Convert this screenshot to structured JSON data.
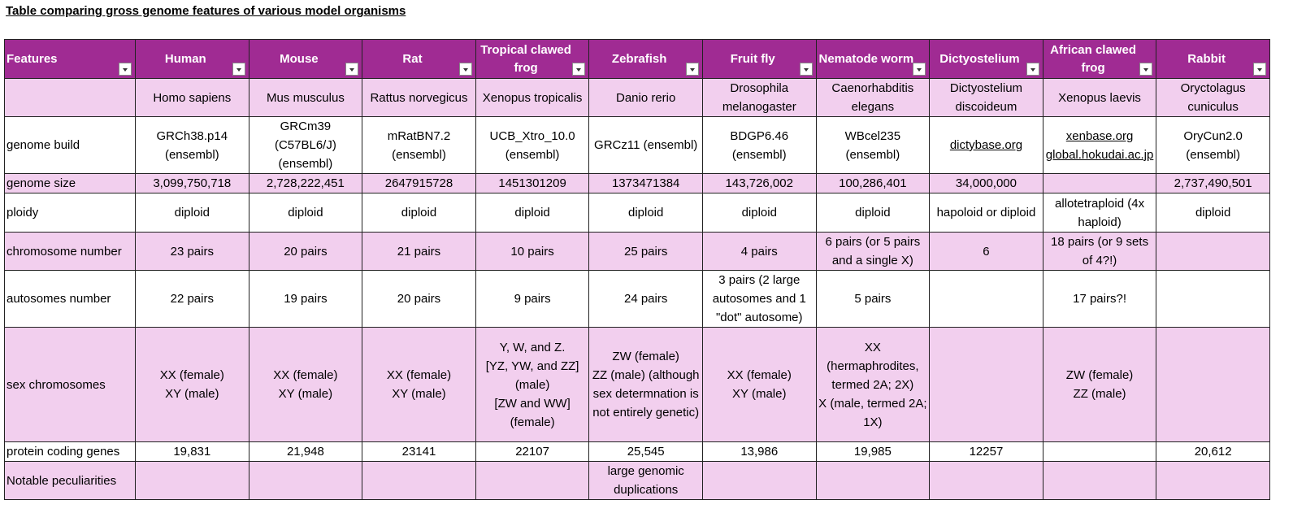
{
  "title": "Table comparing gross genome features of various model organisms",
  "table": {
    "header": [
      "Features",
      "Human",
      "Mouse",
      "Rat",
      "Tropical clawed frog",
      "Zebrafish",
      "Fruit fly",
      "Nematode worm",
      "Dictyostelium",
      "African clawed frog",
      "Rabbit"
    ],
    "rows": [
      [
        null,
        "Homo sapiens",
        "Mus musculus",
        "Rattus norvegicus",
        "Xenopus tropicalis",
        "Danio rerio",
        "Drosophila melanogaster",
        "Caenorhabditis elegans",
        "Dictyostelium discoideum",
        "Xenopus laevis",
        "Oryctolagus cuniculus"
      ],
      [
        "genome build",
        "GRCh38.p14 (ensembl)",
        "GRCm39 (C57BL6/J) (ensembl)",
        "mRatBN7.2 (ensembl)",
        "UCB_Xtro_10.0 (ensembl)",
        "GRCz11 (ensembl)",
        "BDGP6.46 (ensembl)",
        "WBcel235 (ensembl)",
        "dictybase.org",
        "xenbase.org global.hokudai.ac.jp",
        "OryCun2.0 (ensembl)"
      ],
      [
        "genome size",
        "3,099,750,718",
        "2,728,222,451",
        "2647915728",
        "1451301209",
        "1373471384",
        "143,726,002",
        "100,286,401",
        "34,000,000",
        null,
        "2,737,490,501"
      ],
      [
        "ploidy",
        "diploid",
        "diploid",
        "diploid",
        "diploid",
        "diploid",
        "diploid",
        "diploid",
        "hapoloid or diploid",
        "allotetraploid (4x haploid)",
        "diploid"
      ],
      [
        "chromosome number",
        "23 pairs",
        "20 pairs",
        "21 pairs",
        "10 pairs",
        "25 pairs",
        "4 pairs",
        "6 pairs (or 5 pairs and a single X)",
        "6",
        "18 pairs (or 9 sets of 4?!)",
        null
      ],
      [
        "autosomes number",
        "22 pairs",
        "19 pairs",
        "20 pairs",
        "9 pairs",
        "24 pairs",
        "3 pairs (2 large autosomes and 1 \"dot\" autosome)",
        "5 pairs",
        null,
        "17 pairs?!",
        null
      ],
      [
        "sex chromosomes",
        "XX (female)\nXY (male)",
        "XX (female)\nXY (male)",
        "XX (female)\nXY (male)",
        "Y, W, and Z.\n[YZ, YW, and ZZ] (male)\n[ZW and WW] (female)",
        "ZW (female)\nZZ (male) (although sex determnation is not entirely genetic)",
        "XX (female)\nXY (male)",
        "XX (hermaphrodites, termed 2A; 2X)\nX (male, termed 2A; 1X)",
        null,
        "ZW (female)\nZZ (male)",
        null
      ],
      [
        "protein coding genes",
        "19,831",
        "21,948",
        "23141",
        "22107",
        "25,545",
        "13,986",
        "19,985",
        "12257",
        null,
        "20,612"
      ],
      [
        "Notable peculiarities",
        null,
        null,
        null,
        null,
        "large genomic duplications",
        null,
        null,
        null,
        null,
        null
      ]
    ]
  }
}
